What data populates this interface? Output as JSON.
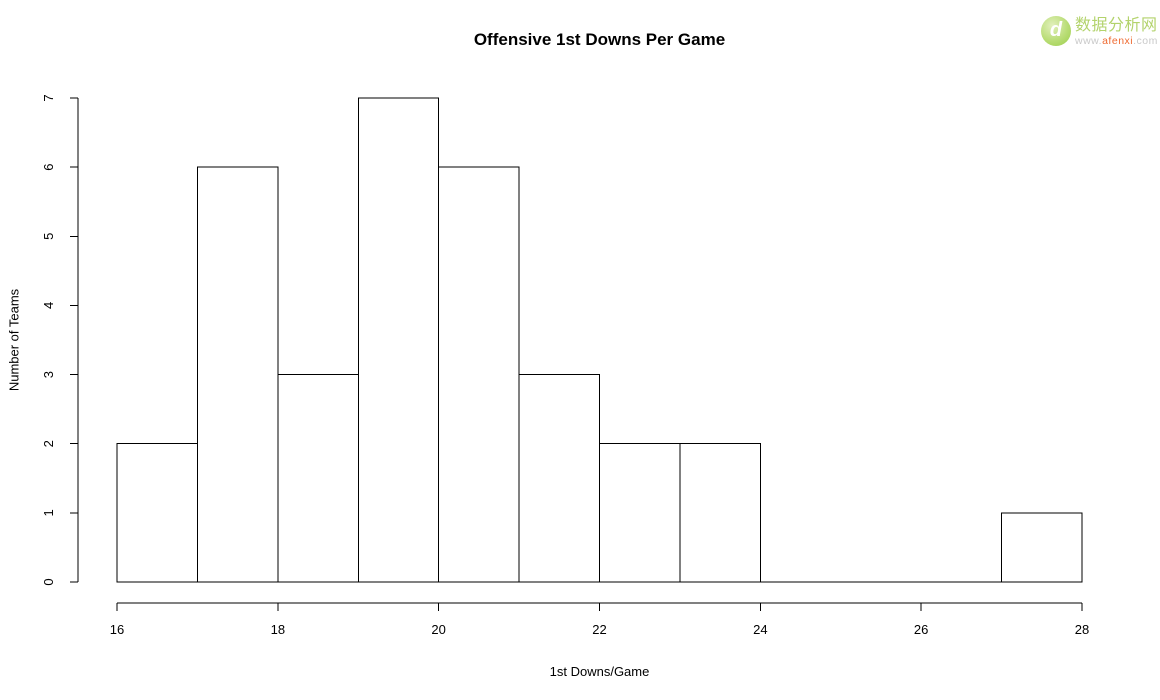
{
  "page": {
    "background_color": "#ffffff",
    "line_color": "#000000",
    "text_color": "#000000"
  },
  "chart_data": {
    "type": "bar",
    "subtype": "histogram",
    "title": "Offensive 1st Downs Per Game",
    "xlabel": "1st Downs/Game",
    "ylabel": "Number of Teams",
    "bin_edges": [
      16,
      17,
      18,
      19,
      20,
      21,
      22,
      23,
      24,
      25,
      26,
      27,
      28
    ],
    "counts": [
      2,
      6,
      3,
      7,
      6,
      3,
      2,
      2,
      0,
      0,
      0,
      1
    ],
    "x_ticks": [
      16,
      18,
      20,
      22,
      24,
      26,
      28
    ],
    "y_ticks": [
      0,
      1,
      2,
      3,
      4,
      5,
      6,
      7
    ],
    "xlim": [
      16,
      28
    ],
    "ylim": [
      0,
      7
    ],
    "grid": false,
    "legend": null,
    "bar_fill": "#ffffff",
    "bar_stroke": "#000000"
  },
  "watermark": {
    "logo_letter": "d",
    "brand": "数据分析网",
    "url_prefix": "www.",
    "url_domain": "afenxi",
    "url_suffix": ".com",
    "brand_color": "#b3d36c",
    "domain_color": "#ef6a30",
    "url_gray_color": "#c9c9c9"
  }
}
